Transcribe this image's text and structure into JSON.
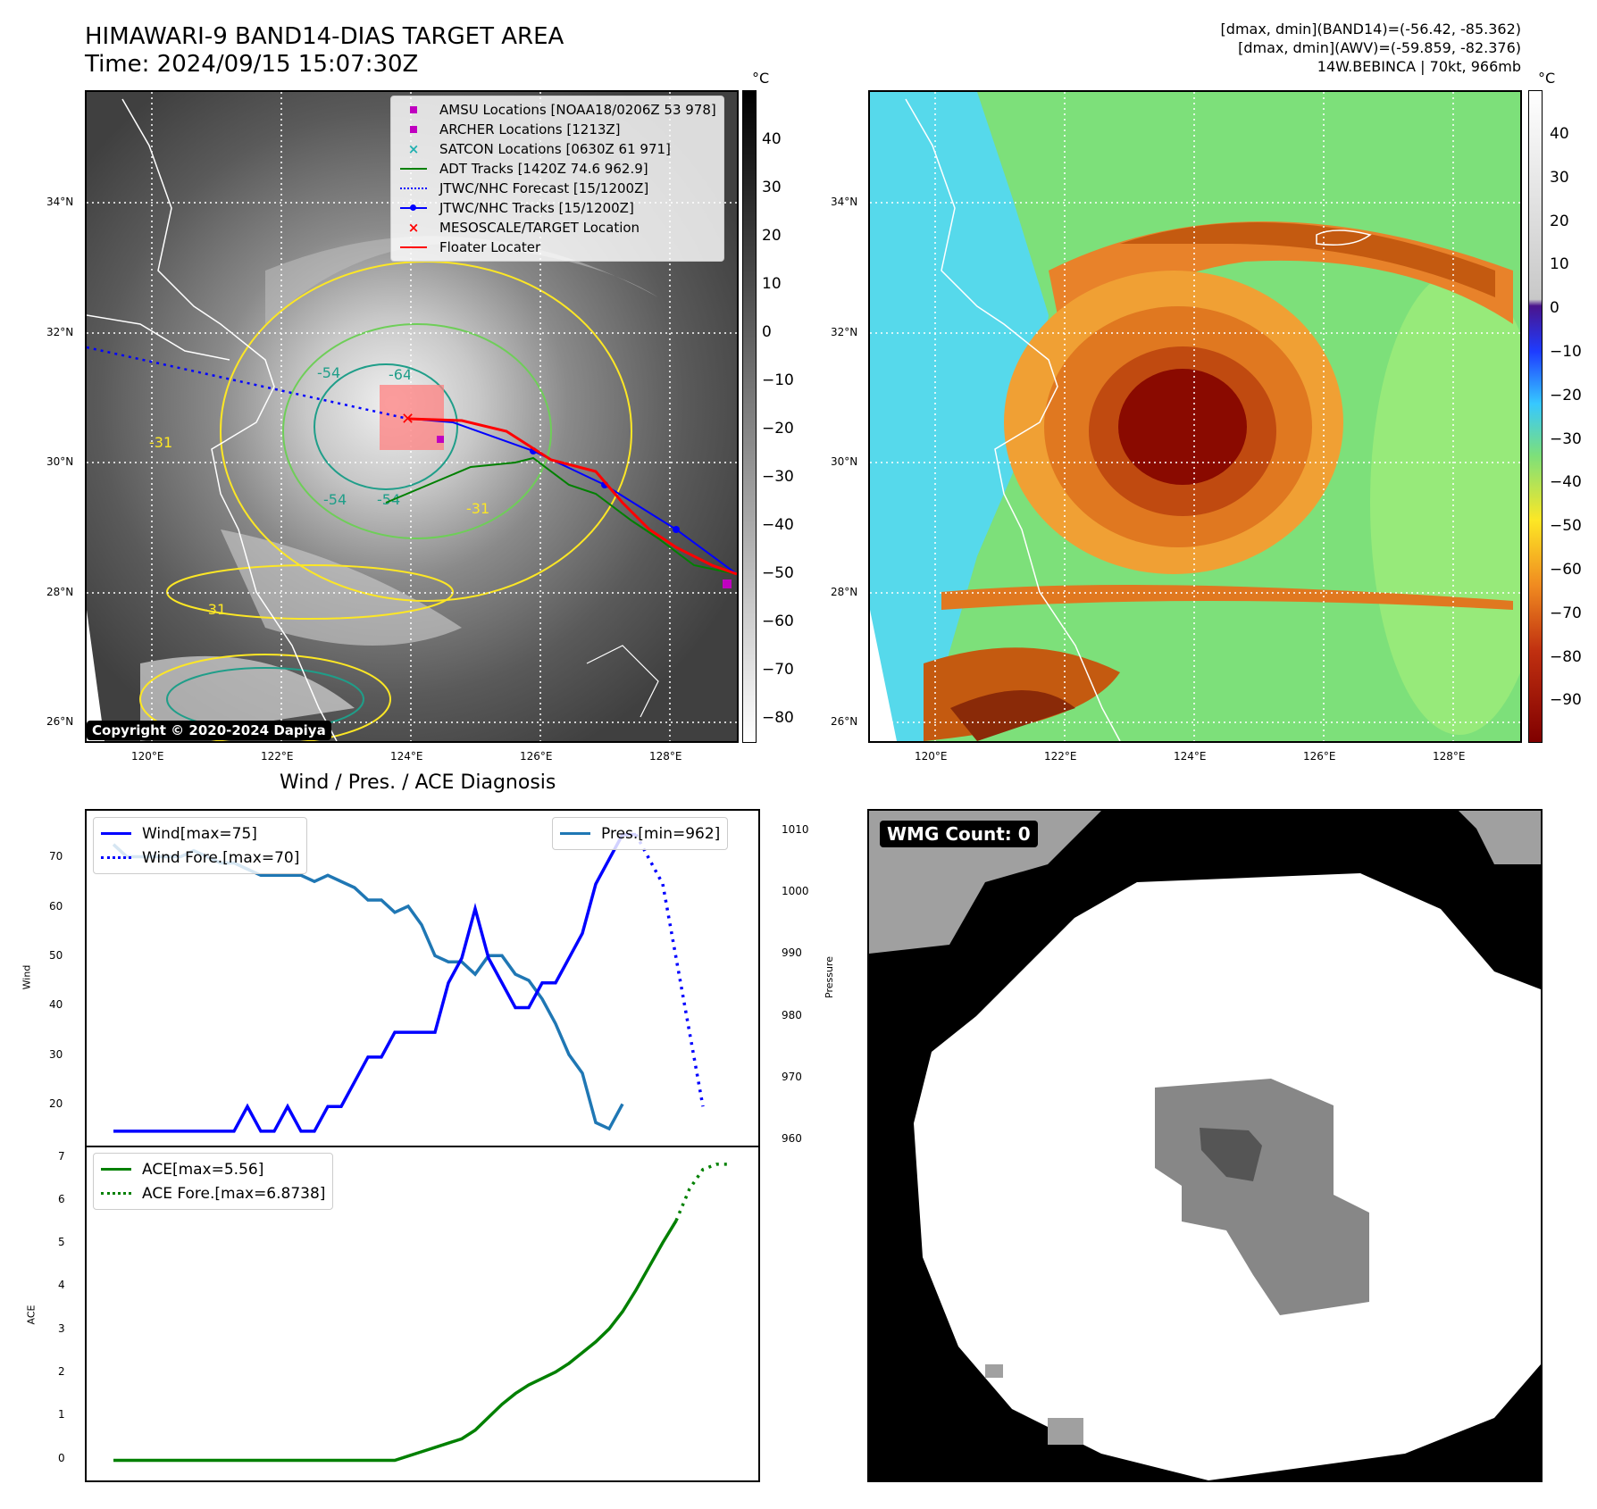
{
  "header": {
    "title_line1": "HIMAWARI-9 BAND14-DIAS TARGET AREA",
    "title_line2": "Time: 2024/09/15 15:07:30Z",
    "info_line1": "[dmax, dmin](BAND14)=(-56.42, -85.362)",
    "info_line2": "[dmax, dmin](AWV)=(-59.859, -82.376)",
    "info_line3": "14W.BEBINCA | 70kt, 966mb"
  },
  "map": {
    "lat_labels": [
      "34°N",
      "32°N",
      "30°N",
      "28°N",
      "26°N"
    ],
    "lon_labels": [
      "120°E",
      "122°E",
      "124°E",
      "126°E",
      "128°E"
    ],
    "copyright": "Copyright © 2020-2024 Dapiya",
    "contour_labels": [
      "-54",
      "-64",
      "-54",
      "-54",
      "-31",
      "-31",
      "-31"
    ],
    "legend": [
      {
        "label": "AMSU Locations [NOAA18/0206Z 53 978]",
        "marker": "square",
        "color": "#c000c0"
      },
      {
        "label": "ARCHER Locations [1213Z]",
        "marker": "square",
        "color": "#c000c0"
      },
      {
        "label": "SATCON Locations [0630Z 61 971]",
        "marker": "x",
        "color": "#20b0b0"
      },
      {
        "label": "ADT Tracks [1420Z 74.6 962.9]",
        "marker": "line",
        "color": "#008000"
      },
      {
        "label": "JTWC/NHC Forecast [15/1200Z]",
        "marker": "dotted",
        "color": "#0000ff"
      },
      {
        "label": "JTWC/NHC Tracks [15/1200Z]",
        "marker": "linedot",
        "color": "#0000ff"
      },
      {
        "label": "MESOSCALE/TARGET Location",
        "marker": "x",
        "color": "#ff0000"
      },
      {
        "label": "Floater Locater",
        "marker": "line",
        "color": "#ff0000"
      }
    ]
  },
  "colorbar1": {
    "unit": "°C",
    "ticks": [
      "40",
      "30",
      "20",
      "10",
      "0",
      "−10",
      "−20",
      "−30",
      "−40",
      "−50",
      "−60",
      "−70",
      "−80"
    ]
  },
  "colorbar2": {
    "unit": "°C",
    "ticks": [
      "40",
      "30",
      "20",
      "10",
      "0",
      "−10",
      "−20",
      "−30",
      "−40",
      "−50",
      "−60",
      "−70",
      "−80",
      "−90"
    ]
  },
  "diagnosis": {
    "title": "Wind / Pres. / ACE Diagnosis",
    "wind_ylabel": "Wind",
    "pres_ylabel": "Pressure",
    "ace_ylabel": "ACE",
    "wind_ticks": [
      "70",
      "60",
      "50",
      "40",
      "30",
      "20"
    ],
    "pres_ticks": [
      "1010",
      "1000",
      "990",
      "980",
      "970",
      "960"
    ],
    "ace_ticks": [
      "7",
      "6",
      "5",
      "4",
      "3",
      "2",
      "1",
      "0"
    ],
    "legend_wind": "Wind[max=75]",
    "legend_wind_fore": "Wind Fore.[max=70]",
    "legend_pres": "Pres.[min=962]",
    "legend_ace": "ACE[max=5.56]",
    "legend_ace_fore": "ACE Fore.[max=6.8738]"
  },
  "wmg": {
    "label": "WMG Count: 0"
  },
  "chart_data": [
    {
      "type": "line",
      "title": "Wind",
      "x": [
        0,
        1,
        2,
        3,
        4,
        5,
        6,
        7,
        8,
        9,
        10,
        11,
        12,
        13,
        14,
        15,
        16,
        17,
        18,
        19,
        20,
        21,
        22,
        23,
        24,
        25,
        26,
        27,
        28,
        29,
        30,
        31,
        32,
        33,
        34,
        35,
        36,
        37,
        38,
        39,
        40
      ],
      "series": [
        {
          "name": "Wind[max=75]",
          "values": [
            15,
            15,
            15,
            15,
            15,
            15,
            15,
            15,
            15,
            15,
            20,
            15,
            15,
            20,
            15,
            15,
            20,
            20,
            25,
            30,
            30,
            35,
            35,
            35,
            35,
            45,
            50,
            60,
            50,
            45,
            40,
            40,
            45,
            45,
            50,
            55,
            65,
            70,
            75,
            75,
            null
          ]
        },
        {
          "name": "Wind Fore.[max=70]",
          "x": [
            39,
            40,
            41,
            42,
            43,
            44
          ],
          "values": [
            75,
            70,
            65,
            50,
            35,
            20
          ]
        }
      ],
      "ylim": [
        13,
        78
      ]
    },
    {
      "type": "line",
      "title": "Pressure",
      "x": [
        0,
        1,
        2,
        3,
        4,
        5,
        6,
        7,
        8,
        9,
        10,
        11,
        12,
        13,
        14,
        15,
        16,
        17,
        18,
        19,
        20,
        21,
        22,
        23,
        24,
        25,
        26,
        27,
        28,
        29,
        30,
        31,
        32,
        33,
        34,
        35,
        36,
        37,
        38,
        39,
        40
      ],
      "series": [
        {
          "name": "Pres.[min=962]",
          "values": [
            1008,
            1006,
            1006,
            1006,
            1006,
            1006,
            1007,
            1006,
            1005,
            1005,
            1004,
            1003,
            1003,
            1003,
            1003,
            1002,
            1003,
            1002,
            1001,
            999,
            999,
            997,
            998,
            995,
            990,
            989,
            989,
            987,
            990,
            990,
            987,
            986,
            983,
            979,
            974,
            971,
            963,
            962,
            966,
            null,
            null
          ]
        }
      ],
      "ylim": [
        960,
        1012
      ]
    },
    {
      "type": "line",
      "title": "ACE",
      "x": [
        0,
        1,
        2,
        3,
        4,
        5,
        6,
        7,
        8,
        9,
        10,
        11,
        12,
        13,
        14,
        15,
        16,
        17,
        18,
        19,
        20,
        21,
        22,
        23,
        24,
        25,
        26,
        27,
        28,
        29,
        30,
        31,
        32,
        33,
        34,
        35,
        36,
        37,
        38,
        39,
        40,
        41,
        42,
        43,
        44
      ],
      "series": [
        {
          "name": "ACE[max=5.56]",
          "values": [
            0,
            0,
            0,
            0,
            0,
            0,
            0,
            0,
            0,
            0,
            0,
            0,
            0,
            0,
            0,
            0,
            0,
            0,
            0,
            0,
            0,
            0,
            0.1,
            0.2,
            0.3,
            0.4,
            0.5,
            0.7,
            1.0,
            1.3,
            1.55,
            1.75,
            1.9,
            2.05,
            2.25,
            2.5,
            2.75,
            3.05,
            3.45,
            3.95,
            4.5,
            5.05,
            5.56,
            null,
            null
          ]
        },
        {
          "name": "ACE Fore.[max=6.8738]",
          "x": [
            42,
            43,
            44,
            45,
            46
          ],
          "values": [
            5.56,
            6.3,
            6.75,
            6.87,
            6.87
          ]
        }
      ],
      "ylim": [
        -0.3,
        7.2
      ]
    }
  ]
}
